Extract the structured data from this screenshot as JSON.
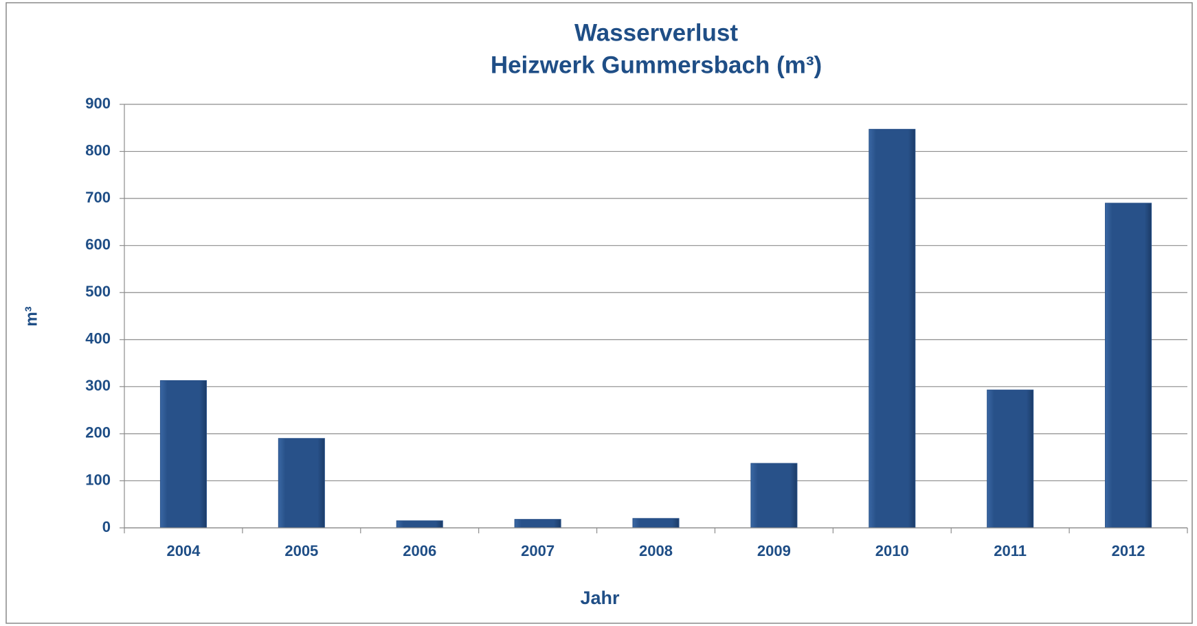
{
  "chart_data": {
    "type": "bar",
    "title": [
      "Wasserverlust",
      "Heizwerk Gummersbach (m³)"
    ],
    "x_label": "Jahr",
    "y_label": "m³",
    "categories": [
      "2004",
      "2005",
      "2006",
      "2007",
      "2008",
      "2009",
      "2010",
      "2011",
      "2012"
    ],
    "values": [
      313,
      190,
      15,
      18,
      20,
      137,
      847,
      293,
      690
    ],
    "color": "#285189",
    "ylim": [
      0,
      900
    ],
    "yticks": [
      0,
      100,
      200,
      300,
      400,
      500,
      600,
      700,
      800,
      900
    ],
    "grid": true
  }
}
